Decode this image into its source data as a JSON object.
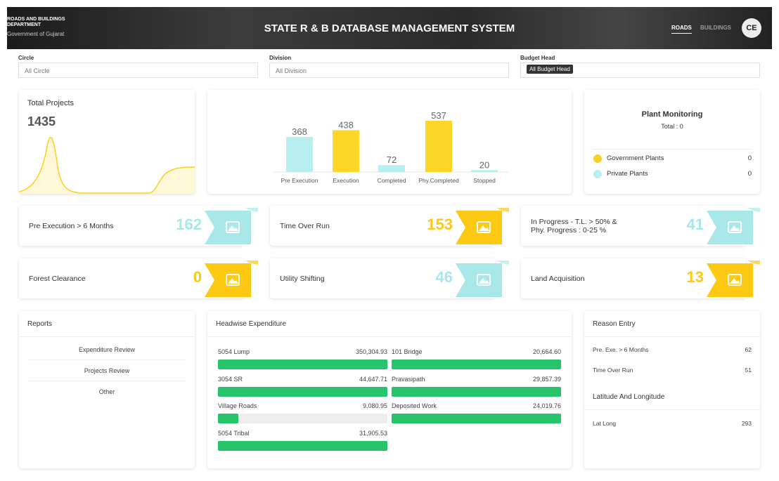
{
  "header": {
    "dept": "ROADS AND BUILDINGS DEPARTMENT",
    "org": "Government of Gujarat",
    "title": "STATE R & B DATABASE MANAGEMENT SYSTEM",
    "nav": [
      "ROADS",
      "BUILDINGS"
    ],
    "avatar": "CE"
  },
  "filters": [
    {
      "label": "Circle",
      "value": "All Circle"
    },
    {
      "label": "Division",
      "value": "All Division"
    },
    {
      "label": "Budget Head",
      "value": "All Budget Head"
    }
  ],
  "total_projects": {
    "title": "Total Projects",
    "value": 1435
  },
  "chart_data": {
    "type": "bar",
    "categories": [
      "Pre Execution",
      "Execution",
      "Completed",
      "Phy.Completed",
      "Stopped"
    ],
    "values": [
      368,
      438,
      72,
      537,
      20
    ],
    "colors": [
      "#b9efee",
      "#fdd52b",
      "#b9efee",
      "#fdd52b",
      "#b9efee"
    ]
  },
  "plant_monitoring": {
    "title": "Plant Monitoring",
    "total_label": "Total :",
    "total": 0,
    "items": [
      {
        "label": "Government Plants",
        "value": 0,
        "color": "#fdcf1e"
      },
      {
        "label": "Private Plants",
        "value": 0,
        "color": "#b9efee"
      }
    ]
  },
  "stats": [
    {
      "label": "Pre Execution > 6 Months",
      "value": 162,
      "color": "#a8e8e8"
    },
    {
      "label": "Time Over Run",
      "value": 153,
      "color": "#fdc912"
    },
    {
      "label": "In Progress - T.L. > 50% &\nPhy. Progress : 0-25 %",
      "value": 41,
      "color": "#a8e8e8"
    },
    {
      "label": "Forest Clearance",
      "value": 0,
      "color": "#fdc912"
    },
    {
      "label": "Utility Shifting",
      "value": 46,
      "color": "#a8e8e8"
    },
    {
      "label": "Land Acquisition",
      "value": 13,
      "color": "#fdc912"
    }
  ],
  "reports": {
    "title": "Reports",
    "items": [
      "Expenditure Review",
      "Projects Review",
      "Other"
    ]
  },
  "headwise": {
    "title": "Headwise Expenditure",
    "columns": [
      [
        {
          "name": "5054 Lump",
          "amount": "350,304.93",
          "fill": 100
        },
        {
          "name": "3054 SR",
          "amount": "44,647.71",
          "fill": 100
        },
        {
          "name": "Village Roads",
          "amount": "9,080.95",
          "fill": 12
        },
        {
          "name": "5054 Tribal",
          "amount": "31,905.53",
          "fill": 100
        }
      ],
      [
        {
          "name": "101 Bridge",
          "amount": "20,664.60",
          "fill": 100
        },
        {
          "name": "Pravasipath",
          "amount": "29,857.39",
          "fill": 100
        },
        {
          "name": "Deposited Work",
          "amount": "24,019.76",
          "fill": 100
        }
      ]
    ]
  },
  "reason_entry": {
    "title": "Reason Entry",
    "items": [
      {
        "label": "Pre. Exe. > 6 Months",
        "value": 62
      },
      {
        "label": "Time Over Run",
        "value": 51
      }
    ],
    "latlong_title": "Latitude And Longitude",
    "latlong_items": [
      {
        "label": "Lat Long",
        "value": 293
      }
    ]
  }
}
